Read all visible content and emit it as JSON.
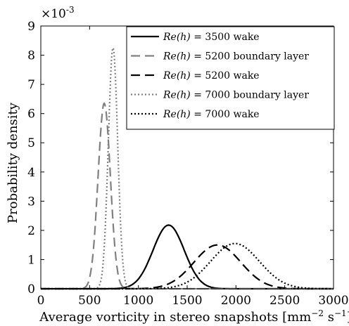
{
  "chart_data": {
    "type": "line",
    "xlabel": "Average vorticity in stereo snapshots [mm",
    "xlabel_sup1": "−2",
    "xlabel_mid": " s",
    "xlabel_sup2": "−1",
    "xlabel_end": "]",
    "ylabel": "Probability density",
    "y_multiplier": "×10",
    "y_multiplier_exp": "-3",
    "xlim": [
      0,
      3000
    ],
    "ylim": [
      0,
      9
    ],
    "x_ticks": [
      0,
      500,
      1000,
      1500,
      2000,
      2500,
      3000
    ],
    "y_ticks": [
      0,
      1,
      2,
      3,
      4,
      5,
      6,
      7,
      8,
      9
    ],
    "grid": false,
    "legend_position": "top-right",
    "series": [
      {
        "name": "= 3500 wake",
        "name_prefix": "Re(h)",
        "style": "solid",
        "color": "#000000",
        "peak_x": 1310,
        "peak_y": 2.18,
        "sigma": 160
      },
      {
        "name": "= 5200 boundary layer",
        "name_prefix": "Re(h)",
        "style": "dashed",
        "color": "#808080",
        "peak_x": 650,
        "peak_y": 6.35,
        "sigma": 63
      },
      {
        "name": "= 5200 wake",
        "name_prefix": "Re(h)",
        "style": "dashed",
        "color": "#000000",
        "peak_x": 1810,
        "peak_y": 1.5,
        "sigma": 240
      },
      {
        "name": "= 7000 boundary layer",
        "name_prefix": "Re(h)",
        "style": "dotted",
        "color": "#808080",
        "peak_x": 740,
        "peak_y": 8.25,
        "sigma": 48
      },
      {
        "name": "= 7000 wake",
        "name_prefix": "Re(h)",
        "style": "dotted",
        "color": "#000000",
        "peak_x": 1990,
        "peak_y": 1.55,
        "sigma": 250
      }
    ]
  }
}
